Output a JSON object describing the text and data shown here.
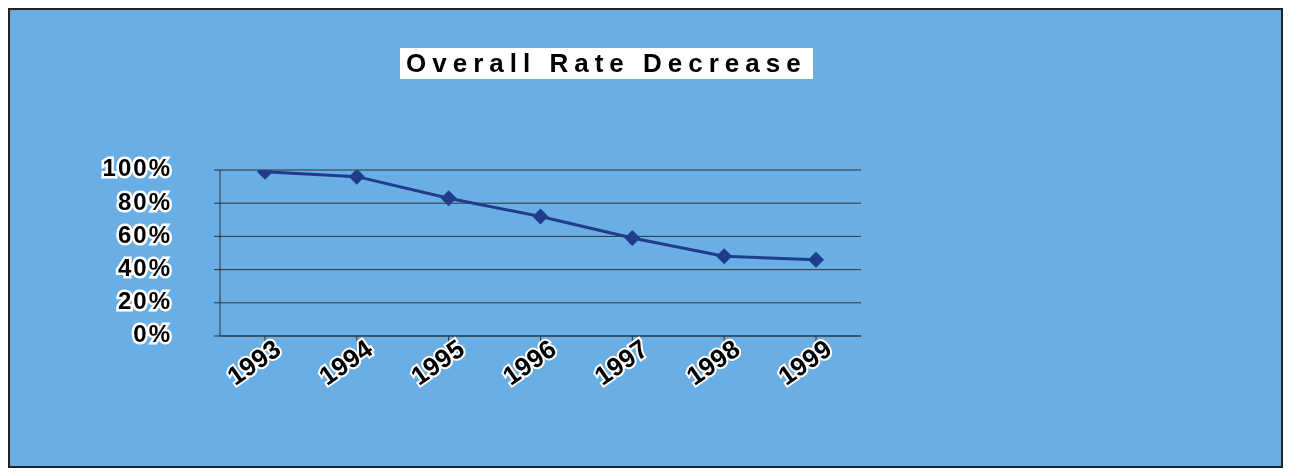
{
  "chart_data": {
    "type": "line",
    "title": "Overall Rate Decrease",
    "categories": [
      "1993",
      "1994",
      "1995",
      "1996",
      "1997",
      "1998",
      "1999"
    ],
    "values": [
      99,
      96,
      83,
      72,
      59,
      48,
      46
    ],
    "color": "#1f3d8a",
    "marker": "diamond",
    "grid": "y",
    "ylim": [
      0,
      100
    ],
    "yticks": [
      {
        "value": 0,
        "label": "0%"
      },
      {
        "value": 20,
        "label": "20%"
      },
      {
        "value": 40,
        "label": "40%"
      },
      {
        "value": 60,
        "label": "60%"
      },
      {
        "value": 80,
        "label": "80%"
      },
      {
        "value": 100,
        "label": "100%"
      }
    ]
  }
}
